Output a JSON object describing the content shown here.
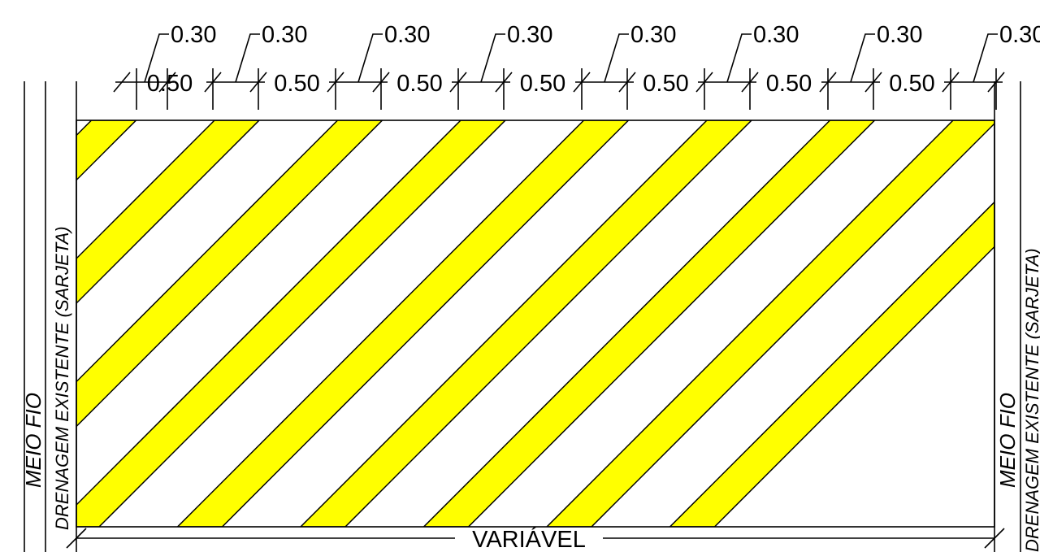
{
  "drawing": {
    "stripe_widths": {
      "label": "0.50",
      "count": 7
    },
    "gap_widths": {
      "label": "0.30",
      "count": 7
    },
    "total_width_label": "VARIÁVEL",
    "left_labels": {
      "curb": "MEIO FIO",
      "drainage": "DRENAGEM EXISTENTE (SARJETA)"
    },
    "right_labels": {
      "curb": "MEIO FIO",
      "drainage": "DRENAGEM EXISTENTE (SARJETA)"
    },
    "colors": {
      "stripe": "#ffff00",
      "line": "#000000",
      "background": "#ffffff"
    }
  }
}
